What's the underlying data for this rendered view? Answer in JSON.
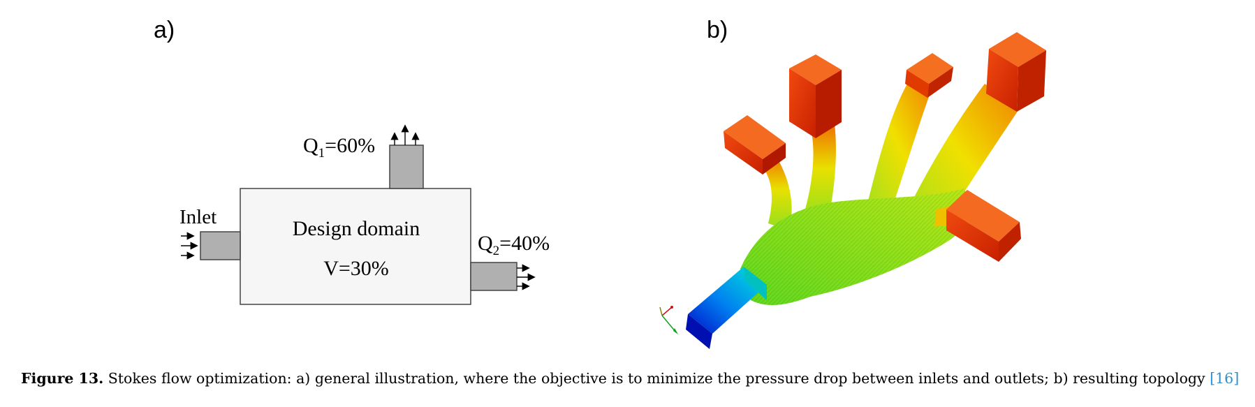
{
  "figure_a": {
    "panel_label": "a)",
    "q1_prefix": "Q",
    "q1_sub": "1",
    "q1_value": "=60%",
    "q2_prefix": "Q",
    "q2_sub": "2",
    "q2_value": "=40%",
    "inlet_label": "Inlet",
    "domain_title": "Design domain",
    "volume_label": "V=30%"
  },
  "figure_b": {
    "panel_label": "b)",
    "colors": {
      "inlet_low": "#0018d8",
      "inlet_mid": "#00e8e8",
      "body": "#88e020",
      "mid": "#e8d800",
      "outlet": "#e82a00"
    }
  },
  "caption": {
    "label": "Figure 13.",
    "text": " Stokes flow optimization: a) general illustration, where the objective is to minimize the pressure drop between inlets and outlets; b) resulting topology ",
    "reference": "[16]"
  }
}
